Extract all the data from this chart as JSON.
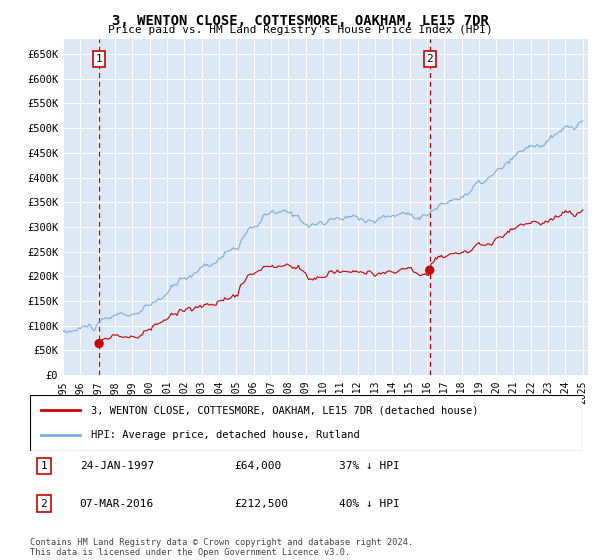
{
  "title_line1": "3, WENTON CLOSE, COTTESMORE, OAKHAM, LE15 7DR",
  "title_line2": "Price paid vs. HM Land Registry's House Price Index (HPI)",
  "ylim": [
    0,
    680000
  ],
  "yticks": [
    0,
    50000,
    100000,
    150000,
    200000,
    250000,
    300000,
    350000,
    400000,
    450000,
    500000,
    550000,
    600000,
    650000
  ],
  "ytick_labels": [
    "£0",
    "£50K",
    "£100K",
    "£150K",
    "£200K",
    "£250K",
    "£300K",
    "£350K",
    "£400K",
    "£450K",
    "£500K",
    "£550K",
    "£600K",
    "£650K"
  ],
  "sale1_date": 1997.07,
  "sale1_price": 64000,
  "sale1_label": "1",
  "sale1_info": "24-JAN-1997",
  "sale1_price_str": "£64,000",
  "sale1_hpi": "37% ↓ HPI",
  "sale2_date": 2016.18,
  "sale2_price": 212500,
  "sale2_label": "2",
  "sale2_info": "07-MAR-2016",
  "sale2_price_str": "£212,500",
  "sale2_hpi": "40% ↓ HPI",
  "hpi_line_color": "#7aaddc",
  "sale_line_color": "#cc0000",
  "sale_marker_color": "#cc0000",
  "vline_color": "#cc0000",
  "plot_bg_color": "#dce8f5",
  "legend_entry1": "3, WENTON CLOSE, COTTESMORE, OAKHAM, LE15 7DR (detached house)",
  "legend_entry2": "HPI: Average price, detached house, Rutland",
  "footer": "Contains HM Land Registry data © Crown copyright and database right 2024.\nThis data is licensed under the Open Government Licence v3.0."
}
